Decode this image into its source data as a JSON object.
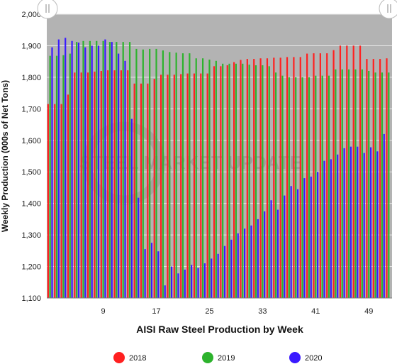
{
  "chart_data": {
    "type": "bar",
    "xlabel": "AISI Raw Steel Production by Week",
    "ylabel": "Weekly Production (000s of Net Tons)",
    "ylim": [
      1100,
      2000
    ],
    "yticks": [
      1100,
      1200,
      1300,
      1400,
      1500,
      1600,
      1700,
      1800,
      1900,
      2000
    ],
    "xlim": [
      1,
      52
    ],
    "xticks": [
      9,
      17,
      25,
      33,
      41,
      49
    ],
    "grid": true,
    "legend_position": "bottom",
    "colors": {
      "plot_bg": "#b3b3b3",
      "grid": "#e8e8e8"
    },
    "weeks": [
      1,
      2,
      3,
      4,
      5,
      6,
      7,
      8,
      9,
      10,
      11,
      12,
      13,
      14,
      15,
      16,
      17,
      18,
      19,
      20,
      21,
      22,
      23,
      24,
      25,
      26,
      27,
      28,
      29,
      30,
      31,
      32,
      33,
      34,
      35,
      36,
      37,
      38,
      39,
      40,
      41,
      42,
      43,
      44,
      45,
      46,
      47,
      48,
      49,
      50,
      51,
      52
    ],
    "series": [
      {
        "name": "2018",
        "color": "#ff2020",
        "values": [
          1715,
          1715,
          1715,
          1745,
          1815,
          1815,
          1815,
          1818,
          1820,
          1822,
          1822,
          1822,
          1822,
          1780,
          1780,
          1780,
          1795,
          1808,
          1808,
          1808,
          1810,
          1812,
          1812,
          1812,
          1812,
          1835,
          1835,
          1838,
          1848,
          1855,
          1858,
          1858,
          1860,
          1860,
          1862,
          1862,
          1864,
          1864,
          1864,
          1875,
          1876,
          1876,
          1876,
          1886,
          1900,
          1900,
          1900,
          1900,
          1858,
          1858,
          1858,
          1860
        ]
      },
      {
        "name": "2019",
        "color": "#2db32d",
        "values": [
          1868,
          1868,
          1870,
          1875,
          1912,
          1915,
          1915,
          1915,
          1915,
          1912,
          1912,
          1912,
          1912,
          1890,
          1888,
          1890,
          1890,
          1885,
          1880,
          1878,
          1876,
          1876,
          1860,
          1860,
          1856,
          1852,
          1843,
          1843,
          1843,
          1843,
          1840,
          1838,
          1838,
          1835,
          1815,
          1805,
          1800,
          1800,
          1800,
          1800,
          1805,
          1805,
          1805,
          1825,
          1825,
          1825,
          1825,
          1825,
          1820,
          1815,
          1815,
          1815
        ]
      },
      {
        "name": "2020",
        "color": "#3a1aff",
        "values": [
          1895,
          1920,
          1925,
          1915,
          1910,
          1895,
          1900,
          1900,
          1920,
          1912,
          1875,
          1852,
          1668,
          1418,
          1255,
          1275,
          1248,
          1140,
          1200,
          1178,
          1190,
          1205,
          1195,
          1210,
          1225,
          1240,
          1265,
          1285,
          1305,
          1320,
          1330,
          1350,
          1375,
          1410,
          1380,
          1425,
          1455,
          1445,
          1480,
          1485,
          1500,
          1535,
          1540,
          1555,
          1575,
          1580,
          1580,
          1560,
          1578,
          1565,
          1620,
          null
        ]
      }
    ]
  },
  "legend": {
    "items": [
      "2018",
      "2019",
      "2020"
    ]
  },
  "watermark": {
    "text": "STEEL MARKET UPDATE"
  }
}
